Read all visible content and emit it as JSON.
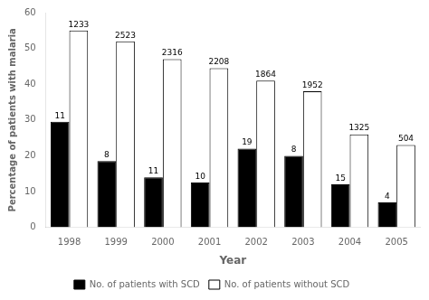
{
  "chart_data": {
    "type": "bar",
    "xlabel": "Year",
    "ylabel": "Percentage of patients with malaria",
    "categories": [
      "1998",
      "1999",
      "2000",
      "2001",
      "2002",
      "2003",
      "2004",
      "2005"
    ],
    "series": [
      {
        "name": "No. of patients with SCD",
        "color": "#000000",
        "values": [
          29.5,
          18.5,
          14,
          12.5,
          22,
          20,
          12,
          7
        ],
        "counts": [
          11,
          8,
          11,
          10,
          19,
          8,
          15,
          4
        ]
      },
      {
        "name": "No. of patients without SCD",
        "color": "#ffffff",
        "values": [
          55,
          52,
          47,
          44.5,
          41,
          38,
          26,
          23
        ],
        "counts": [
          1233,
          2523,
          2316,
          2208,
          1864,
          1952,
          1325,
          504
        ]
      }
    ],
    "ylim": [
      0,
      60
    ],
    "yticks": [
      0,
      10,
      20,
      30,
      40,
      50,
      60
    ],
    "grid": false,
    "legend": "bottom"
  }
}
